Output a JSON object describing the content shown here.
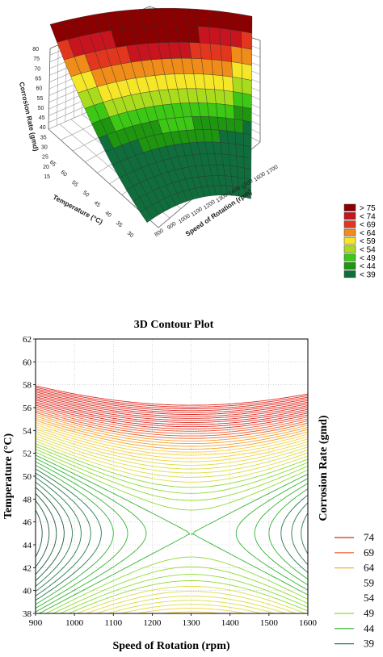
{
  "chart_data": [
    {
      "type": "surface3d",
      "title": "",
      "zlabel": "Corrosion Rate (gmd)",
      "xlabel": "Speed of Rotation (rpm)",
      "ylabel": "Temperature (°C)",
      "z_ticks": [
        "80",
        "75",
        "70",
        "65",
        "60",
        "55",
        "50",
        "45",
        "40",
        "35",
        "30",
        "25",
        "20",
        "15"
      ],
      "x_ticks": [
        "1700",
        "1600",
        "1500",
        "1400",
        "1300",
        "1200",
        "1100",
        "1000",
        "900",
        "800"
      ],
      "y_ticks": [
        "30",
        "35",
        "40",
        "45",
        "50",
        "55",
        "60",
        "65"
      ],
      "legend": [
        {
          "label": "> 75",
          "color": "#8b0000"
        },
        {
          "label": "< 74",
          "color": "#c8141e"
        },
        {
          "label": "< 69",
          "color": "#e2371e"
        },
        {
          "label": "< 64",
          "color": "#f08c19"
        },
        {
          "label": "< 59",
          "color": "#f5e628"
        },
        {
          "label": "< 54",
          "color": "#aadc1e"
        },
        {
          "label": "< 49",
          "color": "#3cc814"
        },
        {
          "label": "< 44",
          "color": "#1e960f"
        },
        {
          "label": "< 39",
          "color": "#0f6e3c"
        }
      ],
      "x_range": [
        800,
        1700
      ],
      "y_range": [
        30,
        65
      ],
      "z_range": [
        15,
        80
      ]
    },
    {
      "type": "contour",
      "title": "3D Contour Plot",
      "xlabel": "Speed of Rotation (rpm)",
      "ylabel": "Temperature (°C)",
      "zlabel": "Corrosion Rate (gmd)",
      "xlim": [
        900,
        1600
      ],
      "ylim": [
        38,
        62
      ],
      "x_ticks": [
        900,
        1000,
        1100,
        1200,
        1300,
        1400,
        1500,
        1600
      ],
      "y_ticks": [
        38,
        40,
        42,
        44,
        46,
        48,
        50,
        52,
        54,
        56,
        58,
        60,
        62
      ],
      "grid": true,
      "saddle_point": {
        "x": 1300,
        "y": 45
      },
      "levels": [
        {
          "label": "74",
          "color": "#e0281e"
        },
        {
          "label": "69",
          "color": "#f05a28"
        },
        {
          "label": "64",
          "color": "#f5b428"
        },
        {
          "label": "59",
          "color": "#ffffff"
        },
        {
          "label": "54",
          "color": "#ffffff"
        },
        {
          "label": "49",
          "color": "#8cdc32"
        },
        {
          "label": "44",
          "color": "#32b432"
        },
        {
          "label": "39",
          "color": "#287850"
        }
      ]
    }
  ]
}
